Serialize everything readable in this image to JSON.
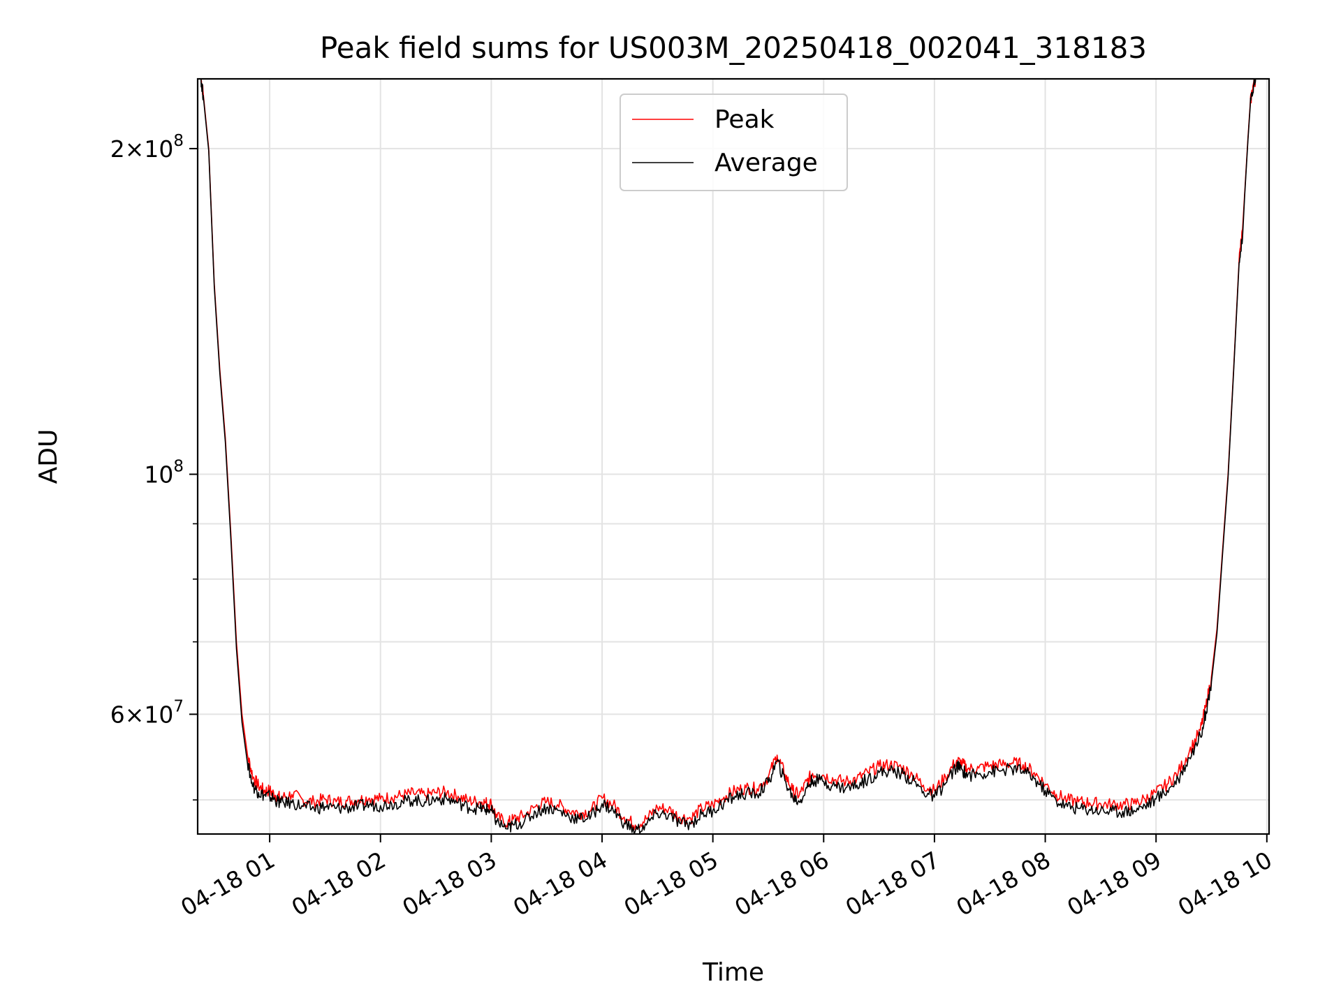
{
  "chart_data": {
    "type": "line",
    "title": "Peak field sums for US003M_20250418_002041_318183",
    "xlabel": "Time",
    "ylabel": "ADU",
    "x_unit": "hours since 2025-04-18 00:00",
    "xlim": [
      0.35,
      10.02
    ],
    "ylim": [
      46500000,
      232000000
    ],
    "yscale": "log",
    "grid": true,
    "legend_position": "upper center",
    "x_ticks": [
      {
        "value": 1,
        "label": "04-18 01"
      },
      {
        "value": 2,
        "label": "04-18 02"
      },
      {
        "value": 3,
        "label": "04-18 03"
      },
      {
        "value": 4,
        "label": "04-18 04"
      },
      {
        "value": 5,
        "label": "04-18 05"
      },
      {
        "value": 6,
        "label": "04-18 06"
      },
      {
        "value": 7,
        "label": "04-18 07"
      },
      {
        "value": 8,
        "label": "04-18 08"
      },
      {
        "value": 9,
        "label": "04-18 09"
      },
      {
        "value": 10,
        "label": "04-18 10"
      }
    ],
    "y_major_ticks": [
      {
        "value": 60000000,
        "mantissa": "6",
        "exponent": "7"
      },
      {
        "value": 100000000,
        "mantissa": "",
        "exponent": "8"
      },
      {
        "value": 200000000,
        "mantissa": "2",
        "exponent": "8"
      }
    ],
    "y_minor_ticks": [
      50000000,
      70000000,
      80000000,
      90000000
    ],
    "series": [
      {
        "name": "Peak",
        "color": "#ff0000",
        "x": [
          0.38,
          0.4,
          0.45,
          0.5,
          0.55,
          0.6,
          0.65,
          0.7,
          0.75,
          0.8,
          0.85,
          0.9,
          0.95,
          1.0,
          1.05,
          1.1,
          1.2,
          1.3,
          1.4,
          1.5,
          1.6,
          1.7,
          1.8,
          1.9,
          2.0,
          2.1,
          2.2,
          2.3,
          2.4,
          2.5,
          2.6,
          2.7,
          2.8,
          2.9,
          2.95,
          3.0,
          3.05,
          3.15,
          3.2,
          3.3,
          3.4,
          3.5,
          3.6,
          3.7,
          3.8,
          3.9,
          4.0,
          4.1,
          4.2,
          4.3,
          4.4,
          4.5,
          4.6,
          4.7,
          4.8,
          4.9,
          5.0,
          5.1,
          5.2,
          5.3,
          5.4,
          5.5,
          5.58,
          5.65,
          5.72,
          5.78,
          5.85,
          5.9,
          6.0,
          6.1,
          6.2,
          6.3,
          6.4,
          6.5,
          6.6,
          6.7,
          6.8,
          6.9,
          7.0,
          7.1,
          7.2,
          7.25,
          7.3,
          7.4,
          7.5,
          7.6,
          7.7,
          7.8,
          7.9,
          8.0,
          8.1,
          8.2,
          8.3,
          8.4,
          8.5,
          8.6,
          8.7,
          8.8,
          8.9,
          9.0,
          9.1,
          9.2,
          9.3,
          9.4,
          9.45,
          9.5,
          9.55,
          9.6,
          9.65,
          9.7,
          9.75,
          9.78,
          9.8,
          9.83,
          9.85,
          9.88,
          9.9
        ],
        "values": [
          232000000,
          225000000,
          200000000,
          150000000,
          125000000,
          108000000,
          88000000,
          70000000,
          60000000,
          55000000,
          52500000,
          51500000,
          51000000,
          51000000,
          50500000,
          50200000,
          50600000,
          50000000,
          49800000,
          50100000,
          49800000,
          49900000,
          50000000,
          50200000,
          50100000,
          50300000,
          50500000,
          50700000,
          50500000,
          50800000,
          50800000,
          50400000,
          49900000,
          49800000,
          49700000,
          49600000,
          48200000,
          47600000,
          48000000,
          48400000,
          49300000,
          49800000,
          49500000,
          48900000,
          48600000,
          48900000,
          50200000,
          49500000,
          48200000,
          47400000,
          48000000,
          49200000,
          49000000,
          48200000,
          48100000,
          49100000,
          49500000,
          50300000,
          51000000,
          51300000,
          51200000,
          52500000,
          55000000,
          52800000,
          51000000,
          50500000,
          52000000,
          52900000,
          52700000,
          52200000,
          52000000,
          52300000,
          53000000,
          53700000,
          53900000,
          53600000,
          52800000,
          51600000,
          51000000,
          52500000,
          54400000,
          54000000,
          53400000,
          53500000,
          53800000,
          53900000,
          54100000,
          53900000,
          53000000,
          51700000,
          50600000,
          50000000,
          49800000,
          49700000,
          49600000,
          49500000,
          49500000,
          49600000,
          50100000,
          50800000,
          51700000,
          53000000,
          55400000,
          58000000,
          61000000,
          65000000,
          72000000,
          85000000,
          100000000,
          125000000,
          158000000,
          168000000,
          182000000,
          205000000,
          220000000,
          230000000,
          232000000
        ]
      },
      {
        "name": "Average",
        "color": "#000000",
        "x": [
          0.38,
          0.4,
          0.45,
          0.5,
          0.55,
          0.6,
          0.65,
          0.7,
          0.75,
          0.8,
          0.85,
          0.9,
          0.95,
          1.0,
          1.05,
          1.1,
          1.2,
          1.3,
          1.4,
          1.5,
          1.6,
          1.7,
          1.8,
          1.9,
          2.0,
          2.1,
          2.2,
          2.3,
          2.4,
          2.5,
          2.6,
          2.7,
          2.8,
          2.9,
          2.95,
          3.0,
          3.05,
          3.15,
          3.2,
          3.3,
          3.4,
          3.5,
          3.6,
          3.7,
          3.8,
          3.9,
          4.0,
          4.1,
          4.2,
          4.3,
          4.4,
          4.5,
          4.6,
          4.7,
          4.8,
          4.9,
          5.0,
          5.1,
          5.2,
          5.3,
          5.4,
          5.5,
          5.58,
          5.65,
          5.72,
          5.78,
          5.85,
          5.9,
          6.0,
          6.1,
          6.2,
          6.3,
          6.4,
          6.5,
          6.6,
          6.7,
          6.8,
          6.9,
          7.0,
          7.1,
          7.2,
          7.25,
          7.3,
          7.4,
          7.5,
          7.6,
          7.7,
          7.8,
          7.9,
          8.0,
          8.1,
          8.2,
          8.3,
          8.4,
          8.5,
          8.6,
          8.7,
          8.8,
          8.9,
          9.0,
          9.1,
          9.2,
          9.3,
          9.4,
          9.45,
          9.5,
          9.55,
          9.6,
          9.65,
          9.7,
          9.75,
          9.78,
          9.8,
          9.83,
          9.85,
          9.88,
          9.9
        ],
        "values": [
          232000000,
          224000000,
          199000000,
          149000000,
          124000000,
          107000000,
          87000000,
          69000000,
          59000000,
          54000000,
          51500000,
          50800000,
          50500000,
          50400000,
          50000000,
          49700000,
          49700000,
          49300000,
          49100000,
          49300000,
          49100000,
          49200000,
          49300000,
          49500000,
          49400000,
          49600000,
          49800000,
          50000000,
          49800000,
          50100000,
          50100000,
          49700000,
          49200000,
          49100000,
          49000000,
          48900000,
          47700000,
          47000000,
          47400000,
          47800000,
          48700000,
          49200000,
          48900000,
          48300000,
          48000000,
          48300000,
          49600000,
          48900000,
          47600000,
          46800000,
          47400000,
          48600000,
          48400000,
          47600000,
          47500000,
          48500000,
          48900000,
          49700000,
          50400000,
          50700000,
          50600000,
          51900000,
          54300000,
          52100000,
          50300000,
          49800000,
          51300000,
          52200000,
          52000000,
          51500000,
          51300000,
          51600000,
          52300000,
          53000000,
          53200000,
          52900000,
          52100000,
          50900000,
          50300000,
          51800000,
          53700000,
          53300000,
          52700000,
          52800000,
          53100000,
          53200000,
          53400000,
          53200000,
          52300000,
          51000000,
          49900000,
          49300000,
          49100000,
          49000000,
          48900000,
          48800000,
          48800000,
          48900000,
          49400000,
          50100000,
          51000000,
          52300000,
          54700000,
          57300000,
          60300000,
          64300000,
          71300000,
          84300000,
          99300000,
          124300000,
          157000000,
          165000000,
          181000000,
          204000000,
          219000000,
          229000000,
          232000000
        ]
      }
    ]
  }
}
